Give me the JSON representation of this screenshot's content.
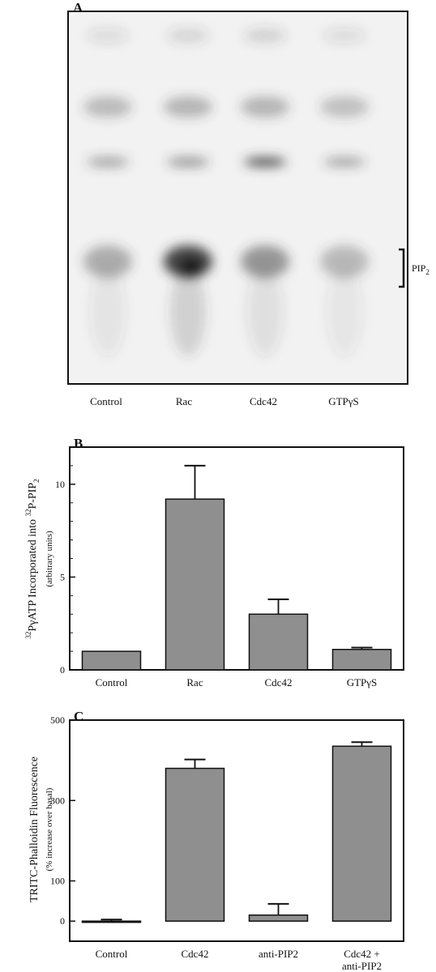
{
  "panel_a": {
    "letter": "A",
    "lanes": [
      "Control",
      "Rac",
      "Cdc42",
      "GTPγS"
    ],
    "bracket_label": "PIP",
    "bracket_sub": "2",
    "colors": {
      "background": "#f2f2f2",
      "band": "#3a3a3a",
      "frame": "#111111"
    }
  },
  "chart_data": [
    {
      "panel": "B",
      "type": "bar",
      "categories": [
        "Control",
        "Rac",
        "Cdc42",
        "GTPγS"
      ],
      "values": [
        1.0,
        9.2,
        3.0,
        1.1
      ],
      "errors": [
        0.0,
        1.8,
        0.8,
        0.1
      ],
      "ylim": [
        0,
        12
      ],
      "yticks": [
        0,
        5,
        10
      ],
      "ylabel_parts": [
        "32",
        "PγATP Incorporated into ",
        "32",
        "P-PIP",
        "2"
      ],
      "ylabel_sub": "(arbitrary units)",
      "bar_color": "#8f8f8f"
    },
    {
      "panel": "C",
      "type": "bar",
      "categories": [
        "Control",
        "Cdc42",
        "anti-PIP2",
        "Cdc42 +\nanti-PIP2"
      ],
      "values": [
        0,
        380,
        15,
        435
      ],
      "errors": [
        4,
        22,
        28,
        10
      ],
      "ylim": [
        -50,
        500
      ],
      "yticks": [
        0,
        100,
        300,
        500
      ],
      "ylabel": "TRITC-Phalloidin Fluorescence",
      "ylabel_sub": "(% increase over basal)",
      "bar_color": "#8f8f8f"
    }
  ]
}
